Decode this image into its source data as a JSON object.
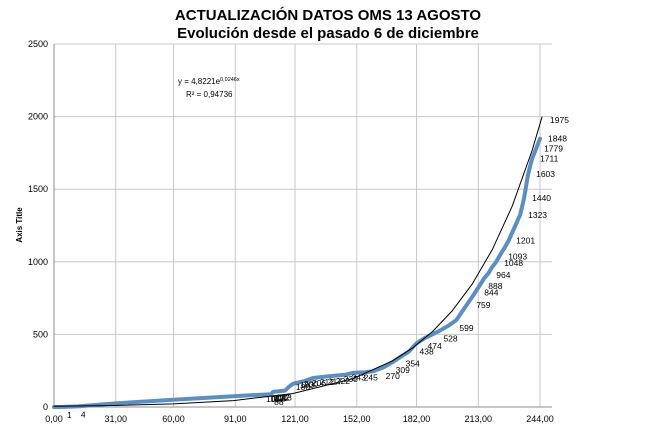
{
  "chart_data": {
    "type": "line",
    "title": "ACTUALIZACIÓN DATOS OMS 13 AGOSTO",
    "subtitle": "Evolución desde el pasado 6 de diciembre",
    "xlabel": "",
    "ylabel": "Axis Title",
    "xlim": [
      0,
      250
    ],
    "ylim": [
      0,
      2500
    ],
    "x_ticks": [
      "0,00",
      "31,00",
      "60,00",
      "91,00",
      "121,00",
      "152,00",
      "182,00",
      "213,00",
      "244,00"
    ],
    "y_ticks": [
      "0",
      "500",
      "1000",
      "1500",
      "2000",
      "2500"
    ],
    "grid": true,
    "legend": "none",
    "series": [
      {
        "color": "#5b8fc4",
        "x": [
          0,
          5,
          12,
          31,
          60,
          91,
          109,
          110,
          112,
          113,
          114,
          115,
          116,
          118,
          120,
          123,
          126,
          130,
          134,
          138,
          142,
          146,
          150,
          156,
          160,
          165,
          170,
          175,
          178,
          180,
          182,
          186,
          190,
          194,
          198,
          202,
          206,
          210,
          214,
          216,
          218,
          220,
          222,
          224,
          226,
          228,
          230,
          232,
          234,
          235,
          236,
          238,
          240,
          242,
          244
        ],
        "y": [
          0,
          1,
          4,
          25,
          50,
          75,
          88,
          105,
          107,
          108,
          110,
          112,
          113,
          140,
          160,
          170,
          180,
          200,
          206,
          212,
          217,
          222,
          235,
          240,
          245,
          270,
          309,
          354,
          380,
          410,
          438,
          474,
          500,
          528,
          560,
          599,
          680,
          759,
          844,
          888,
          920,
          964,
          1000,
          1048,
          1093,
          1140,
          1201,
          1260,
          1323,
          1380,
          1440,
          1603,
          1711,
          1779,
          1848
        ]
      },
      {
        "color": "#000000",
        "x": [
          0,
          30,
          60,
          90,
          120,
          150,
          170,
          180,
          190,
          200,
          210,
          220,
          230,
          240,
          245
        ],
        "y": [
          4.82,
          10.12,
          21.2,
          44.4,
          93.1,
          195.1,
          318.4,
          406.8,
          519.6,
          663.7,
          847.8,
          1082.9,
          1383.2,
          1766.8,
          1996.4
        ]
      }
    ],
    "data_labels": [
      {
        "text": "1",
        "x": 5,
        "y": 1
      },
      {
        "text": "4",
        "x": 12,
        "y": 4
      },
      {
        "text": "88",
        "x": 109,
        "y": 88
      },
      {
        "text": "105",
        "x": 110,
        "y": 105
      },
      {
        "text": "107",
        "x": 112,
        "y": 107
      },
      {
        "text": "108",
        "x": 113,
        "y": 108
      },
      {
        "text": "110",
        "x": 114,
        "y": 110
      },
      {
        "text": "112",
        "x": 115,
        "y": 112
      },
      {
        "text": "113",
        "x": 116,
        "y": 113
      },
      {
        "text": "180",
        "x": 126,
        "y": 180
      },
      {
        "text": "193",
        "x": 128,
        "y": 193
      },
      {
        "text": "200",
        "x": 130,
        "y": 200
      },
      {
        "text": "206",
        "x": 134,
        "y": 206
      },
      {
        "text": "212",
        "x": 138,
        "y": 212
      },
      {
        "text": "217",
        "x": 142,
        "y": 217
      },
      {
        "text": "222",
        "x": 146,
        "y": 222
      },
      {
        "text": "235",
        "x": 150,
        "y": 235
      },
      {
        "text": "243",
        "x": 154,
        "y": 243
      },
      {
        "text": "245",
        "x": 160,
        "y": 245
      },
      {
        "text": "270",
        "x": 165,
        "y": 270
      },
      {
        "text": "309",
        "x": 170,
        "y": 309
      },
      {
        "text": "354",
        "x": 175,
        "y": 354
      },
      {
        "text": "438",
        "x": 182,
        "y": 438
      },
      {
        "text": "474",
        "x": 186,
        "y": 474
      },
      {
        "text": "528",
        "x": 194,
        "y": 528
      },
      {
        "text": "599",
        "x": 202,
        "y": 599
      },
      {
        "text": "759",
        "x": 210,
        "y": 759
      },
      {
        "text": "844",
        "x": 214,
        "y": 844
      },
      {
        "text": "888",
        "x": 216,
        "y": 888
      },
      {
        "text": "964",
        "x": 220,
        "y": 964
      },
      {
        "text": "1048",
        "x": 224,
        "y": 1048
      },
      {
        "text": "1093",
        "x": 226,
        "y": 1093
      },
      {
        "text": "1201",
        "x": 230,
        "y": 1201
      },
      {
        "text": "1323",
        "x": 234,
        "y": 1323
      },
      {
        "text": "1440",
        "x": 236,
        "y": 1440
      },
      {
        "text": "1603",
        "x": 238,
        "y": 1603
      },
      {
        "text": "1711",
        "x": 240,
        "y": 1711
      },
      {
        "text": "1779",
        "x": 242,
        "y": 1779
      },
      {
        "text": "1848",
        "x": 244,
        "y": 1848
      },
      {
        "text": "1975",
        "x": 245,
        "y": 1975
      }
    ],
    "annotations": [
      {
        "text": "y = 4,8221e",
        "sup": "0,0246x"
      },
      {
        "text": "R² = 0,94736"
      }
    ]
  }
}
